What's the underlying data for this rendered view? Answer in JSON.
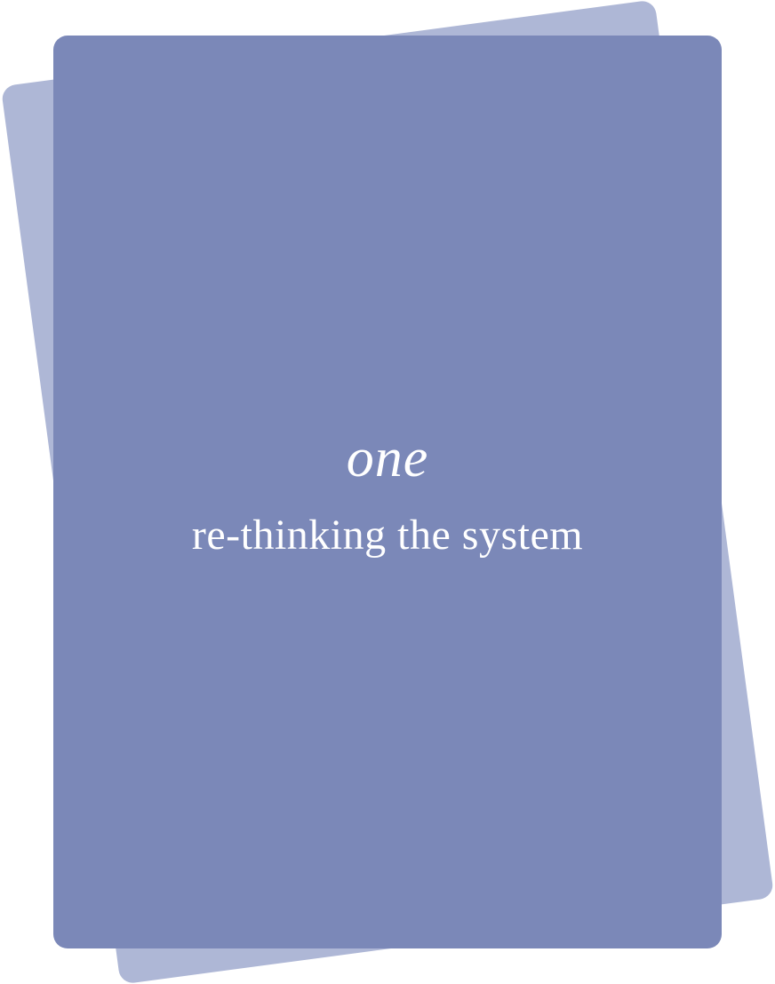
{
  "card": {
    "chapter_number": "one",
    "chapter_title": "re-thinking the system"
  },
  "colors": {
    "front_card": "#7B88B8",
    "back_card": "#AEB7D6",
    "text": "#FFFFFF",
    "background": "#FFFFFF"
  }
}
